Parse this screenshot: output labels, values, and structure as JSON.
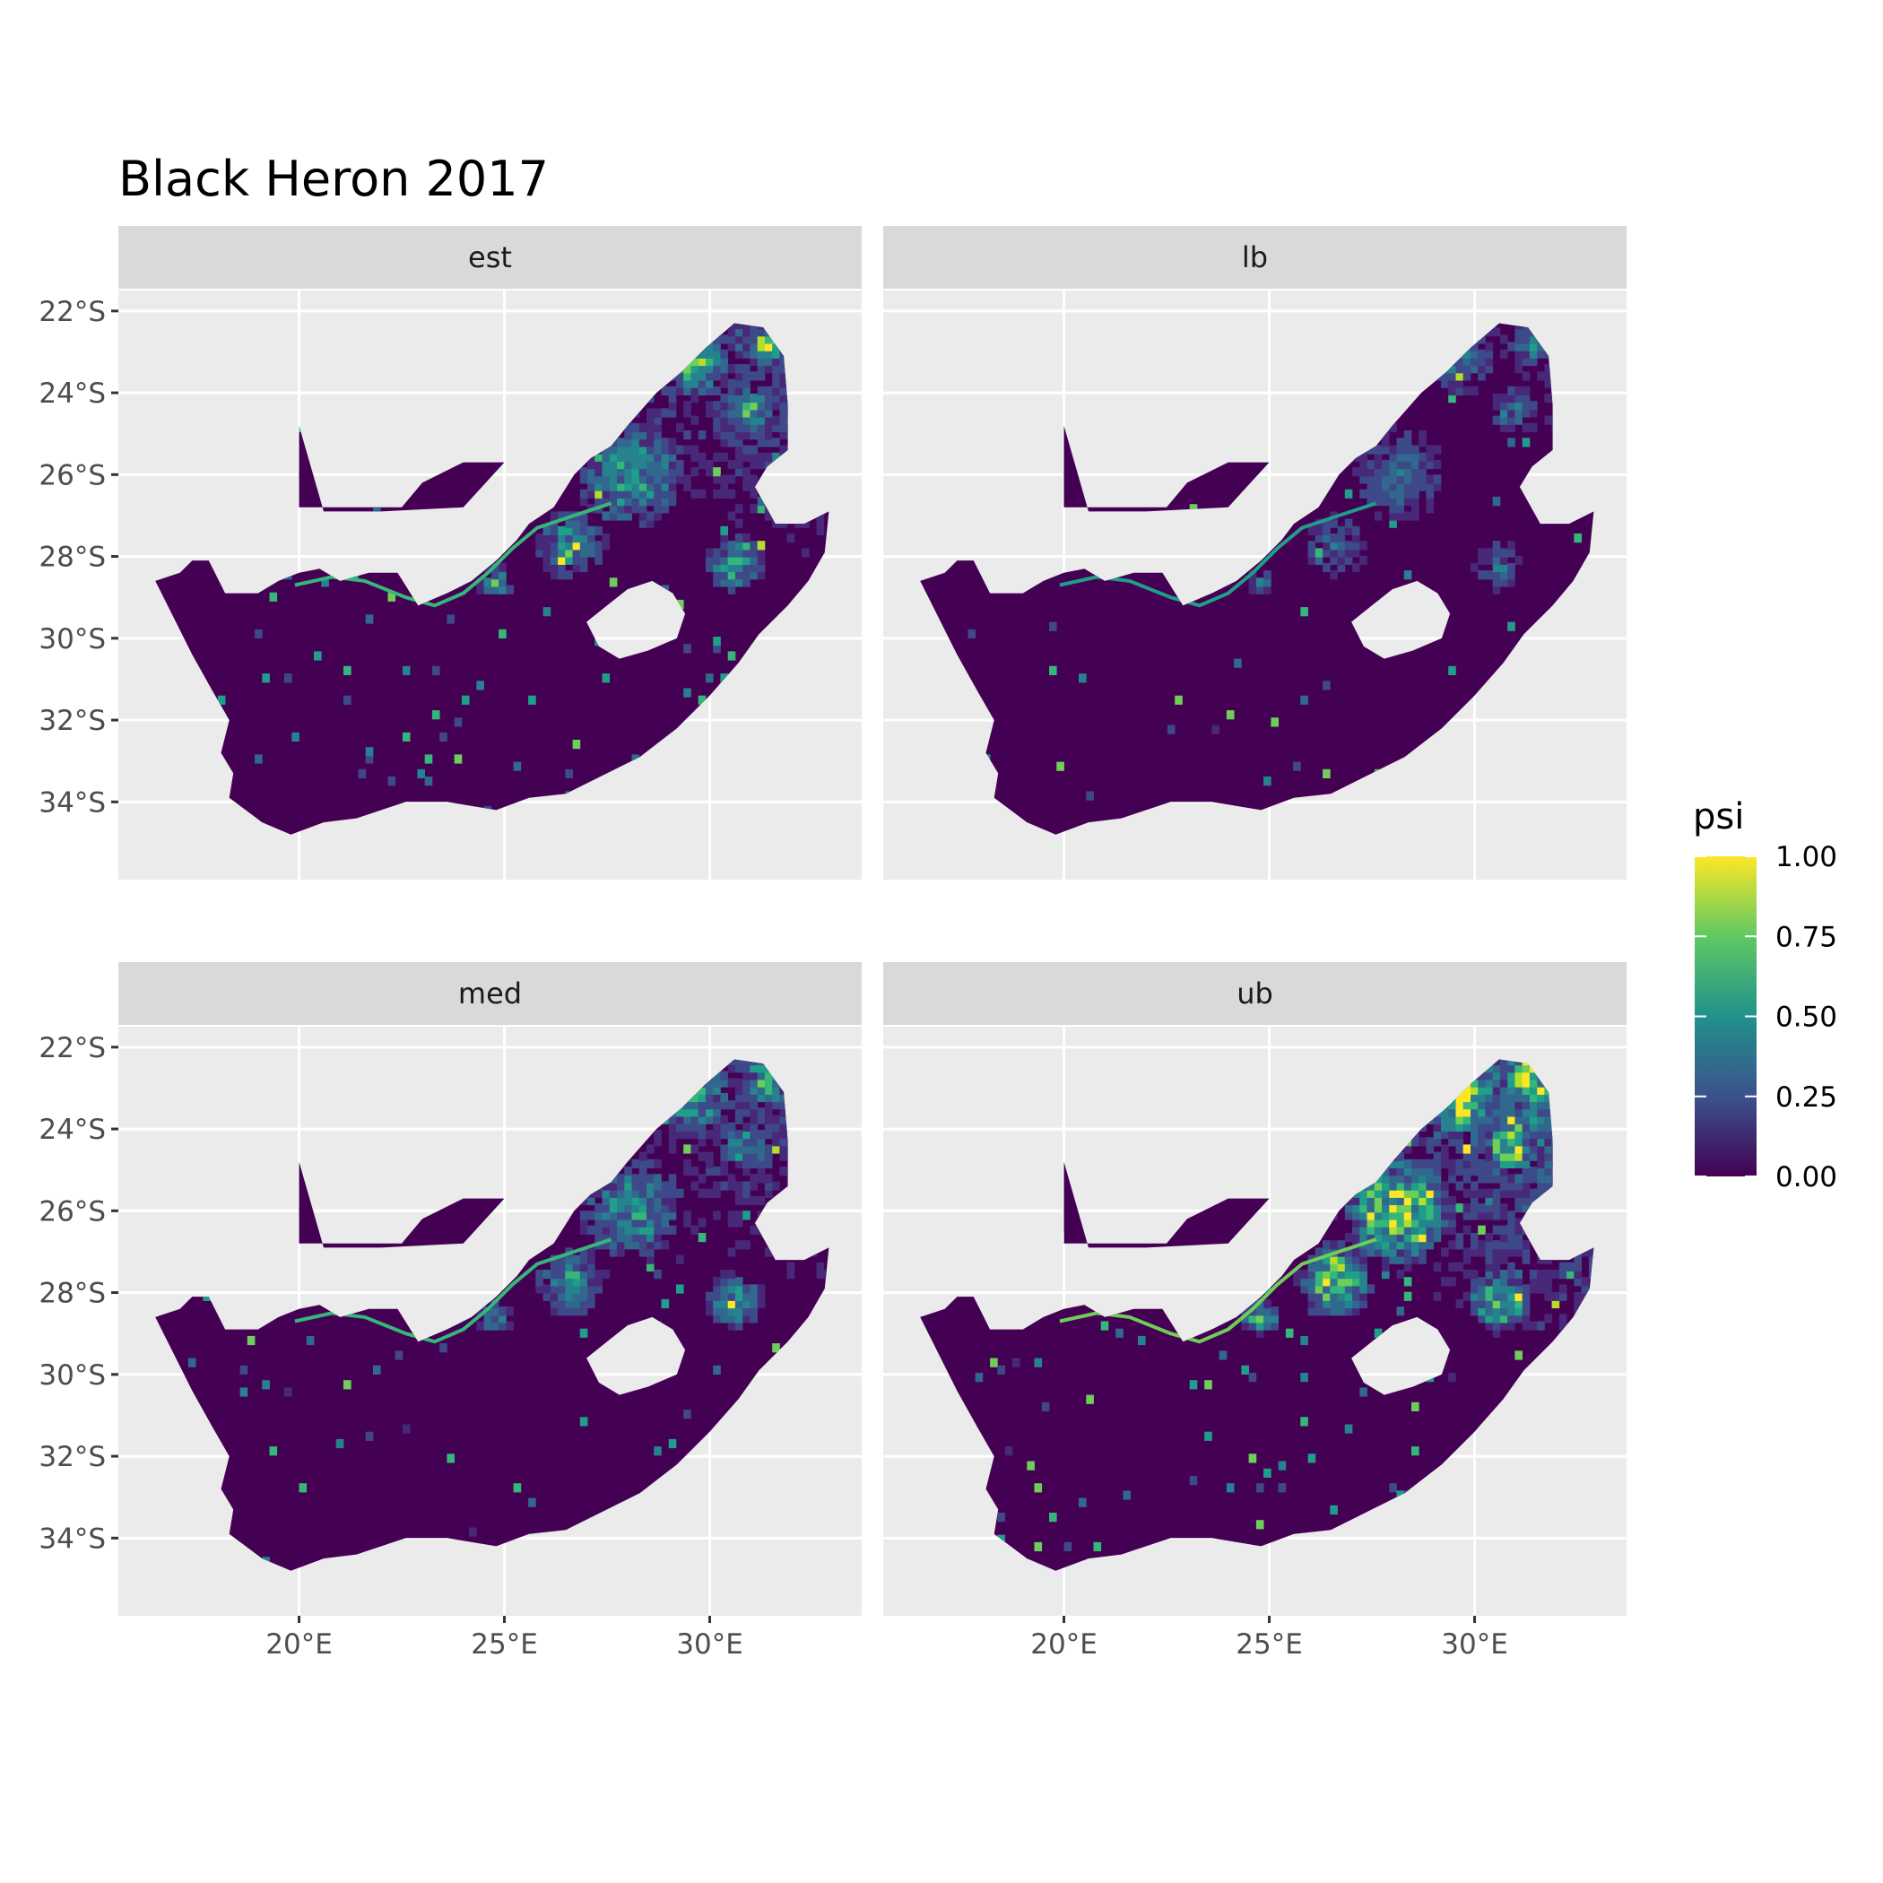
{
  "title": "Black Heron 2017",
  "legend": {
    "title": "psi",
    "labels": [
      "1.00",
      "0.75",
      "0.50",
      "0.25",
      "0.00"
    ],
    "colors": [
      "#440154",
      "#3b528b",
      "#21918c",
      "#5ec962",
      "#fde725"
    ]
  },
  "axes": {
    "x_ticks": [
      {
        "value": 20,
        "label": "20°E"
      },
      {
        "value": 25,
        "label": "25°E"
      },
      {
        "value": 30,
        "label": "30°E"
      }
    ],
    "y_ticks": [
      {
        "value": -22,
        "label": "22°S"
      },
      {
        "value": -24,
        "label": "24°S"
      },
      {
        "value": -26,
        "label": "26°S"
      },
      {
        "value": -28,
        "label": "28°S"
      },
      {
        "value": -30,
        "label": "30°S"
      },
      {
        "value": -32,
        "label": "32°S"
      },
      {
        "value": -34,
        "label": "34°S"
      }
    ],
    "xlim": [
      15.6,
      33.7
    ],
    "ylim": [
      -35.9,
      -21.5
    ]
  },
  "panels": [
    {
      "label": "est",
      "intensity": 0.55
    },
    {
      "label": "lb",
      "intensity": 0.3
    },
    {
      "label": "med",
      "intensity": 0.5
    },
    {
      "label": "ub",
      "intensity": 0.85
    }
  ],
  "chart_data": {
    "type": "heatmap",
    "title": "Black Heron 2017",
    "facets": [
      "est",
      "lb",
      "med",
      "ub"
    ],
    "fill_variable": "psi",
    "fill_range": [
      0,
      1
    ],
    "colormap": "viridis",
    "xlim": [
      15.6,
      33.7
    ],
    "ylim": [
      -35.9,
      -21.5
    ],
    "grid": true,
    "legend_position": "right"
  }
}
